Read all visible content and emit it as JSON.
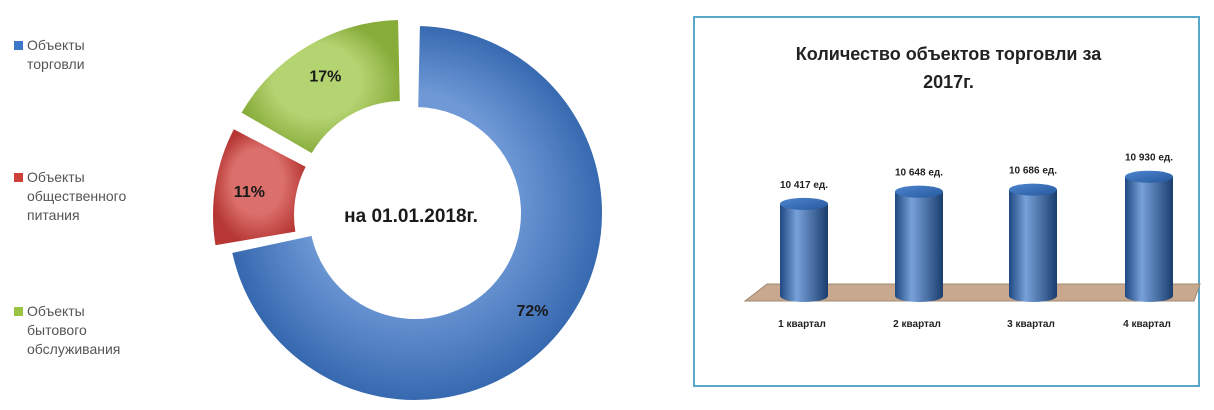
{
  "chart_data": [
    {
      "type": "pie",
      "variant": "donut",
      "center_label": "на 01.01.2018г.",
      "slices": [
        {
          "name": "Объекты торговли",
          "value": 72,
          "label": "72%",
          "color": "#3f77c8"
        },
        {
          "name": "Объекты общественного питания",
          "value": 11,
          "label": "11%",
          "color": "#cf3f3a"
        },
        {
          "name": "Объекты бытового обслуживания",
          "value": 17,
          "label": "17%",
          "color": "#9bc442"
        }
      ],
      "legend": {
        "position": "left",
        "items": [
          {
            "lines": [
              "Объекты",
              "торговли"
            ],
            "color": "#3f77c8"
          },
          {
            "lines": [
              "Объекты",
              "общественного",
              "питания"
            ],
            "color": "#cf3f3a"
          },
          {
            "lines": [
              "Объекты",
              "бытового",
              "обслуживания"
            ],
            "color": "#9bc442"
          }
        ]
      }
    },
    {
      "type": "bar",
      "style": "3d-cylinder",
      "title": "Количество объектов торговли за 2017г.",
      "title_lines": [
        "Количество объектов торговли за",
        "2017г."
      ],
      "categories": [
        "1 квартал",
        "2 квартал",
        "3 квартал",
        "4 квартал"
      ],
      "values": [
        10417,
        10648,
        10686,
        10930
      ],
      "data_labels": [
        "10 417 ед.",
        "10 648 ед.",
        "10 686 ед.",
        "10 930 ед."
      ],
      "color": "#2f6fc6",
      "floor_color": "#c8a98f",
      "border_color": "#58a9c9"
    }
  ]
}
